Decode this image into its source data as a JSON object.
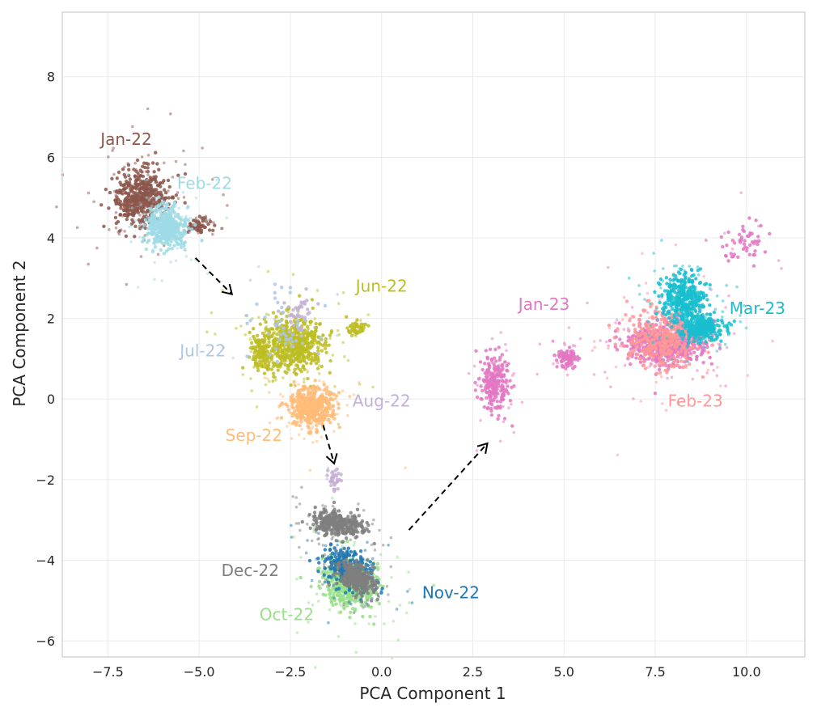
{
  "chart_data": {
    "type": "scatter",
    "title": "",
    "xlabel": "PCA Component 1",
    "ylabel": "PCA Component 2",
    "xlim": [
      -8.75,
      11.6
    ],
    "ylim": [
      -6.4,
      9.6
    ],
    "xticks": [
      -7.5,
      -5.0,
      -2.5,
      0.0,
      2.5,
      5.0,
      7.5,
      10.0
    ],
    "xtick_labels": [
      "−7.5",
      "−5.0",
      "−2.5",
      "0.0",
      "2.5",
      "5.0",
      "7.5",
      "10.0"
    ],
    "yticks": [
      -6,
      -4,
      -2,
      0,
      2,
      4,
      6,
      8
    ],
    "ytick_labels": [
      "−6",
      "−4",
      "−2",
      "0",
      "2",
      "4",
      "6",
      "8"
    ],
    "grid": true,
    "series": [
      {
        "name": "Jan-22",
        "color": "#8c564b",
        "label_pos": [
          -7.0,
          6.45
        ],
        "clusters": [
          {
            "cx": -6.6,
            "cy": 5.0,
            "sx": 0.45,
            "sy": 0.5,
            "rot": -45,
            "n": 500
          },
          {
            "cx": -5.0,
            "cy": 4.3,
            "sx": 0.18,
            "sy": 0.15,
            "rot": 0,
            "n": 60
          }
        ]
      },
      {
        "name": "Feb-22",
        "color": "#9edae5",
        "label_pos": [
          -4.85,
          5.35
        ],
        "clusters": [
          {
            "cx": -5.9,
            "cy": 4.25,
            "sx": 0.35,
            "sy": 0.35,
            "rot": -30,
            "n": 450
          }
        ]
      },
      {
        "name": "Jun-22",
        "color": "#bcbd22",
        "label_pos": [
          0.0,
          2.8
        ],
        "clusters": [
          {
            "cx": -2.4,
            "cy": 1.35,
            "sx": 0.55,
            "sy": 0.45,
            "rot": 0,
            "n": 600
          },
          {
            "cx": -3.3,
            "cy": 1.2,
            "sx": 0.2,
            "sy": 0.3,
            "rot": 0,
            "n": 120
          },
          {
            "cx": -0.7,
            "cy": 1.75,
            "sx": 0.15,
            "sy": 0.12,
            "rot": 0,
            "n": 50
          }
        ]
      },
      {
        "name": "Jul-22",
        "color": "#aec7e8",
        "label_pos": [
          -4.9,
          1.2
        ],
        "clusters": [
          {
            "cx": -2.6,
            "cy": 1.8,
            "sx": 0.6,
            "sy": 0.5,
            "rot": 0,
            "n": 60
          }
        ]
      },
      {
        "name": "Aug-22",
        "color": "#c5b0d5",
        "label_pos": [
          0.0,
          -0.05
        ],
        "clusters": [
          {
            "cx": -1.3,
            "cy": -2.0,
            "sx": 0.12,
            "sy": 0.2,
            "rot": 0,
            "n": 40
          },
          {
            "cx": -2.3,
            "cy": 2.2,
            "sx": 0.3,
            "sy": 0.3,
            "rot": 0,
            "n": 40
          }
        ]
      },
      {
        "name": "Sep-22",
        "color": "#ffbb78",
        "label_pos": [
          -3.5,
          -0.9
        ],
        "clusters": [
          {
            "cx": -1.9,
            "cy": -0.2,
            "sx": 0.4,
            "sy": 0.35,
            "rot": -20,
            "n": 450
          }
        ]
      },
      {
        "name": "Oct-22",
        "color": "#98df8a",
        "label_pos": [
          -2.6,
          -5.35
        ],
        "clusters": [
          {
            "cx": -0.9,
            "cy": -4.55,
            "sx": 0.5,
            "sy": 0.4,
            "rot": -25,
            "n": 550
          }
        ]
      },
      {
        "name": "Nov-22",
        "color": "#1f77b4",
        "label_pos": [
          1.9,
          -4.8
        ],
        "clusters": [
          {
            "cx": -0.95,
            "cy": -4.2,
            "sx": 0.5,
            "sy": 0.3,
            "rot": -25,
            "n": 260
          }
        ]
      },
      {
        "name": "Dec-22",
        "color": "#7f7f7f",
        "label_pos": [
          -3.6,
          -4.25
        ],
        "clusters": [
          {
            "cx": -1.2,
            "cy": -3.1,
            "sx": 0.45,
            "sy": 0.18,
            "rot": -10,
            "n": 400
          },
          {
            "cx": -0.7,
            "cy": -4.45,
            "sx": 0.35,
            "sy": 0.22,
            "rot": -25,
            "n": 350
          }
        ]
      },
      {
        "name": "Jan-23",
        "color": "#e377c2",
        "label_pos": [
          4.45,
          2.35
        ],
        "clusters": [
          {
            "cx": 3.1,
            "cy": 0.35,
            "sx": 0.25,
            "sy": 0.45,
            "rot": 0,
            "n": 250
          },
          {
            "cx": 5.1,
            "cy": 1.0,
            "sx": 0.2,
            "sy": 0.15,
            "rot": 0,
            "n": 100
          },
          {
            "cx": 7.8,
            "cy": 1.4,
            "sx": 0.7,
            "sy": 0.35,
            "rot": 0,
            "n": 600
          },
          {
            "cx": 10.0,
            "cy": 3.9,
            "sx": 0.4,
            "sy": 0.3,
            "rot": 0,
            "n": 60
          }
        ]
      },
      {
        "name": "Feb-23",
        "color": "#ff9896",
        "label_pos": [
          8.6,
          -0.05
        ],
        "clusters": [
          {
            "cx": 7.7,
            "cy": 1.5,
            "sx": 0.65,
            "sy": 0.5,
            "rot": 0,
            "n": 400
          }
        ]
      },
      {
        "name": "Mar-23",
        "color": "#17becf",
        "label_pos": [
          10.3,
          2.25
        ],
        "clusters": [
          {
            "cx": 8.3,
            "cy": 2.5,
            "sx": 0.4,
            "sy": 0.4,
            "rot": 0,
            "n": 400
          },
          {
            "cx": 8.8,
            "cy": 1.75,
            "sx": 0.35,
            "sy": 0.2,
            "rot": 0,
            "n": 300
          }
        ]
      }
    ],
    "arrows": [
      {
        "from": [
          -5.1,
          3.5
        ],
        "to": [
          -4.1,
          2.6
        ]
      },
      {
        "from": [
          -1.6,
          -0.65
        ],
        "to": [
          -1.3,
          -1.6
        ]
      },
      {
        "from": [
          0.75,
          -3.25
        ],
        "to": [
          2.9,
          -1.1
        ]
      }
    ]
  }
}
